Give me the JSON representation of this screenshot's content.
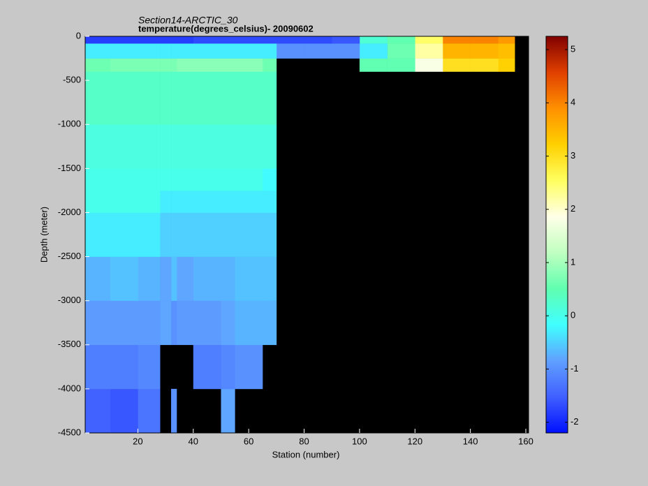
{
  "chart_data": {
    "type": "heatmap",
    "title": "Section14-ARCTIC_30",
    "subtitle": "temperature(degrees_celsius)- 20090602",
    "x_label": "Station (number)",
    "y_label": "Depth (meter)",
    "xlim": [
      1,
      161
    ],
    "xticks": [
      20,
      40,
      60,
      80,
      100,
      120,
      140,
      160
    ],
    "ylim": [
      -4500,
      0
    ],
    "yticks": [
      0,
      -500,
      -1000,
      -1500,
      -2000,
      -2500,
      -3000,
      -3500,
      -4000,
      -4500
    ],
    "clim": [
      -2.2,
      5.25
    ],
    "cticks": [
      -2,
      -1,
      0,
      1,
      2,
      3,
      4,
      5
    ],
    "colormap": [
      "#0010ff",
      "#4060ff",
      "#60a0ff",
      "#40ffff",
      "#60ffb0",
      "#c0ffc0",
      "#ffffe8",
      "#ffff60",
      "#ffd000",
      "#ff9000",
      "#e04000",
      "#800000"
    ],
    "missing_color": "#000000",
    "x_edges": [
      1,
      10,
      20,
      28,
      32,
      34,
      40,
      50,
      55,
      65,
      70,
      80,
      90,
      100,
      110,
      120,
      130,
      140,
      150,
      156,
      161
    ],
    "y_edges": [
      0,
      -80,
      -250,
      -400,
      -1000,
      -1500,
      -1750,
      -2000,
      -2500,
      -3000,
      -3500,
      -4000,
      -4500
    ],
    "values": [
      [
        -1.8,
        -1.8,
        -1.8,
        -1.8,
        -1.8,
        -1.8,
        -1.7,
        -1.7,
        -1.7,
        -1.7,
        -1.7,
        -1.7,
        -1.6,
        0.2,
        0.5,
        2.5,
        4,
        4,
        3.8,
        null
      ],
      [
        -0.3,
        -0.3,
        -0.3,
        -0.3,
        -0.3,
        -0.3,
        -0.3,
        -0.3,
        -0.3,
        -0.3,
        -1.0,
        -1.0,
        -1.0,
        -0.3,
        0.6,
        2.2,
        3.5,
        3.5,
        3.4,
        null
      ],
      [
        0.6,
        0.7,
        0.7,
        0.7,
        0.7,
        0.8,
        0.8,
        0.8,
        0.8,
        0.6,
        null,
        null,
        null,
        0.5,
        0.5,
        1.8,
        3.0,
        3.0,
        3.2,
        null
      ],
      [
        0.3,
        0.3,
        0.3,
        0.3,
        0.3,
        0.3,
        0.3,
        0.3,
        0.3,
        0.3,
        null,
        null,
        null,
        null,
        null,
        null,
        null,
        null,
        null,
        null
      ],
      [
        0.1,
        0.1,
        0.1,
        0.1,
        0.1,
        0.1,
        0.1,
        0.1,
        0.1,
        0.1,
        null,
        null,
        null,
        null,
        null,
        null,
        null,
        null,
        null,
        null
      ],
      [
        0.0,
        0.0,
        0.0,
        0.0,
        0.0,
        0.0,
        0.0,
        0.0,
        0.0,
        -0.2,
        null,
        null,
        null,
        null,
        null,
        null,
        null,
        null,
        null,
        null
      ],
      [
        0.0,
        0.0,
        0.0,
        -0.3,
        -0.3,
        -0.3,
        -0.3,
        -0.3,
        -0.3,
        -0.3,
        null,
        null,
        null,
        null,
        null,
        null,
        null,
        null,
        null,
        null
      ],
      [
        -0.3,
        -0.3,
        -0.3,
        -0.5,
        -0.5,
        -0.5,
        -0.5,
        -0.5,
        -0.5,
        -0.5,
        null,
        null,
        null,
        null,
        null,
        null,
        null,
        null,
        null,
        null
      ],
      [
        -0.7,
        -0.6,
        -0.7,
        -0.8,
        -0.6,
        -0.8,
        -0.7,
        -0.7,
        -0.6,
        -0.6,
        null,
        null,
        null,
        null,
        null,
        null,
        null,
        null,
        null,
        null
      ],
      [
        -0.9,
        -0.9,
        -0.9,
        -0.8,
        -1.0,
        -0.9,
        -0.9,
        -0.8,
        -0.7,
        -0.7,
        null,
        null,
        null,
        null,
        null,
        null,
        null,
        null,
        null,
        null
      ],
      [
        -1.2,
        -1.2,
        -1.1,
        null,
        null,
        null,
        -1.2,
        -1.1,
        -1.0,
        null,
        null,
        null,
        null,
        null,
        null,
        null,
        null,
        null,
        null,
        null
      ],
      [
        -1.5,
        -1.6,
        -1.3,
        null,
        -1.0,
        null,
        null,
        -0.8,
        null,
        null,
        null,
        null,
        null,
        null,
        null,
        null,
        null,
        null,
        null,
        null
      ]
    ]
  }
}
